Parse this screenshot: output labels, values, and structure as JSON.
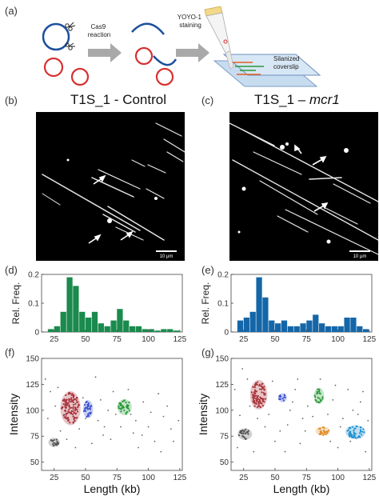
{
  "panel_labels": {
    "a": "(a)",
    "b": "(b)",
    "c": "(c)",
    "d": "(d)",
    "e": "(e)",
    "f": "(f)",
    "g": "(g)"
  },
  "schematic": {
    "step1": "Cas9\nreaction",
    "step2": "YOYO-1\nstaining",
    "coverslip": "Silanized\ncoverslip"
  },
  "titles": {
    "control": "T1S_1 - Control",
    "mcr1_prefix": "T1S_1 – ",
    "mcr1_italic": "mcr1"
  },
  "scale_bar": "10 μm",
  "colors": {
    "hist_control": "#1a8a4d",
    "hist_mcr1": "#1466a8",
    "clusters": [
      "#a8323a",
      "#3a4fd0",
      "#2a9a3a",
      "#555555",
      "#e08a20",
      "#1e90d0"
    ]
  },
  "chart_data": [
    {
      "panel": "d",
      "type": "bar",
      "ylabel": "Rel. Freq.",
      "xlabel": "",
      "x": [
        22.5,
        27.5,
        32.5,
        37.5,
        42.5,
        47.5,
        52.5,
        57.5,
        62.5,
        67.5,
        72.5,
        77.5,
        82.5,
        87.5,
        92.5,
        97.5,
        102.5,
        107.5,
        112.5,
        117.5,
        122.5
      ],
      "values": [
        0.01,
        0.02,
        0.07,
        0.19,
        0.16,
        0.07,
        0.05,
        0.07,
        0.03,
        0.02,
        0.04,
        0.08,
        0.04,
        0.02,
        0.02,
        0.01,
        0.01,
        0.005,
        0.01,
        0.01,
        0.005
      ],
      "xlim": [
        15,
        127
      ],
      "ylim": [
        0,
        0.2
      ],
      "xticks": [
        "25",
        "50",
        "75",
        "100",
        "125"
      ],
      "yticks": [
        "0",
        "0.1",
        "0.2"
      ]
    },
    {
      "panel": "e",
      "type": "bar",
      "ylabel": "Rel. Freq.",
      "xlabel": "",
      "x": [
        22.5,
        27.5,
        32.5,
        37.5,
        42.5,
        47.5,
        52.5,
        57.5,
        62.5,
        67.5,
        72.5,
        77.5,
        82.5,
        87.5,
        92.5,
        97.5,
        102.5,
        107.5,
        112.5,
        117.5,
        122.5
      ],
      "values": [
        0.04,
        0.05,
        0.07,
        0.19,
        0.12,
        0.04,
        0.03,
        0.04,
        0.02,
        0.02,
        0.03,
        0.04,
        0.06,
        0.03,
        0.02,
        0.02,
        0.02,
        0.05,
        0.05,
        0.02,
        0.01
      ],
      "xlim": [
        15,
        127
      ],
      "ylim": [
        0,
        0.2
      ],
      "xticks": [
        "25",
        "50",
        "75",
        "100",
        "125"
      ],
      "yticks": [
        "0",
        "0.1",
        "0.2"
      ]
    },
    {
      "panel": "f",
      "type": "scatter",
      "xlabel": "Length (kb)",
      "ylabel": "Intensity",
      "xlim": [
        15,
        127
      ],
      "ylim": [
        42,
        150
      ],
      "xticks": [
        "25",
        "50",
        "75",
        "100",
        "125"
      ],
      "yticks": [
        "50",
        "75",
        "100",
        "125",
        "150"
      ],
      "clusters": [
        {
          "cx": 38,
          "cy": 102,
          "rx": 7,
          "ry": 15,
          "color": "#a8323a"
        },
        {
          "cx": 52,
          "cy": 101,
          "rx": 3.5,
          "ry": 8,
          "color": "#3a4fd0"
        },
        {
          "cx": 81,
          "cy": 103,
          "rx": 5,
          "ry": 7,
          "color": "#2a9a3a"
        },
        {
          "cx": 25,
          "cy": 69,
          "rx": 4,
          "ry": 4,
          "color": "#555555"
        }
      ],
      "noise": [
        [
          18,
          130
        ],
        [
          22,
          118
        ],
        [
          28,
          122
        ],
        [
          33,
          96
        ],
        [
          45,
          82
        ],
        [
          48,
          112
        ],
        [
          55,
          68
        ],
        [
          60,
          90
        ],
        [
          62,
          110
        ],
        [
          65,
          84
        ],
        [
          70,
          72
        ],
        [
          72,
          118
        ],
        [
          74,
          96
        ],
        [
          88,
          78
        ],
        [
          90,
          90
        ],
        [
          92,
          64
        ],
        [
          96,
          108
        ],
        [
          100,
          84
        ],
        [
          105,
          70
        ],
        [
          108,
          116
        ],
        [
          112,
          94
        ],
        [
          118,
          82
        ],
        [
          20,
          92
        ],
        [
          30,
          80
        ],
        [
          42,
          64
        ],
        [
          58,
          132
        ],
        [
          68,
          100
        ],
        [
          84,
          120
        ],
        [
          95,
          76
        ],
        [
          110,
          60
        ],
        [
          115,
          104
        ],
        [
          120,
          70
        ],
        [
          26,
          104
        ],
        [
          35,
          72
        ],
        [
          50,
          92
        ],
        [
          64,
          76
        ],
        [
          78,
          84
        ],
        [
          86,
          96
        ],
        [
          102,
          98
        ],
        [
          124,
          90
        ]
      ]
    },
    {
      "panel": "g",
      "type": "scatter",
      "xlabel": "Length (kb)",
      "ylabel": "Intensity",
      "xlim": [
        15,
        127
      ],
      "ylim": [
        42,
        150
      ],
      "xticks": [
        "25",
        "50",
        "75",
        "100",
        "125"
      ],
      "yticks": [
        "50",
        "75",
        "100",
        "125",
        "150"
      ],
      "clusters": [
        {
          "cx": 37,
          "cy": 115,
          "rx": 6,
          "ry": 13,
          "color": "#a8323a"
        },
        {
          "cx": 56,
          "cy": 112,
          "rx": 3,
          "ry": 4,
          "color": "#3a4fd0"
        },
        {
          "cx": 85,
          "cy": 114,
          "rx": 3.5,
          "ry": 7,
          "color": "#2a9a3a"
        },
        {
          "cx": 26,
          "cy": 77,
          "rx": 5,
          "ry": 5,
          "color": "#555555"
        },
        {
          "cx": 88,
          "cy": 80,
          "rx": 5,
          "ry": 4,
          "color": "#e08a20"
        },
        {
          "cx": 114,
          "cy": 79,
          "rx": 7,
          "ry": 6,
          "color": "#1e90d0"
        }
      ],
      "noise": [
        [
          18,
          120
        ],
        [
          22,
          95
        ],
        [
          28,
          130
        ],
        [
          33,
          60
        ],
        [
          45,
          96
        ],
        [
          48,
          128
        ],
        [
          50,
          70
        ],
        [
          60,
          86
        ],
        [
          62,
          100
        ],
        [
          66,
          120
        ],
        [
          70,
          68
        ],
        [
          72,
          92
        ],
        [
          76,
          104
        ],
        [
          92,
          96
        ],
        [
          96,
          110
        ],
        [
          100,
          64
        ],
        [
          104,
          92
        ],
        [
          108,
          120
        ],
        [
          112,
          100
        ],
        [
          120,
          118
        ],
        [
          20,
          64
        ],
        [
          30,
          104
        ],
        [
          42,
          84
        ],
        [
          54,
          80
        ],
        [
          58,
          60
        ],
        [
          68,
          130
        ],
        [
          80,
          94
        ],
        [
          94,
          70
        ],
        [
          98,
          124
        ],
        [
          116,
          96
        ],
        [
          122,
          60
        ],
        [
          24,
          140
        ],
        [
          36,
          92
        ],
        [
          64,
          108
        ],
        [
          74,
          80
        ],
        [
          86,
          130
        ],
        [
          102,
          84
        ],
        [
          110,
          70
        ],
        [
          118,
          108
        ],
        [
          124,
          90
        ]
      ]
    }
  ]
}
